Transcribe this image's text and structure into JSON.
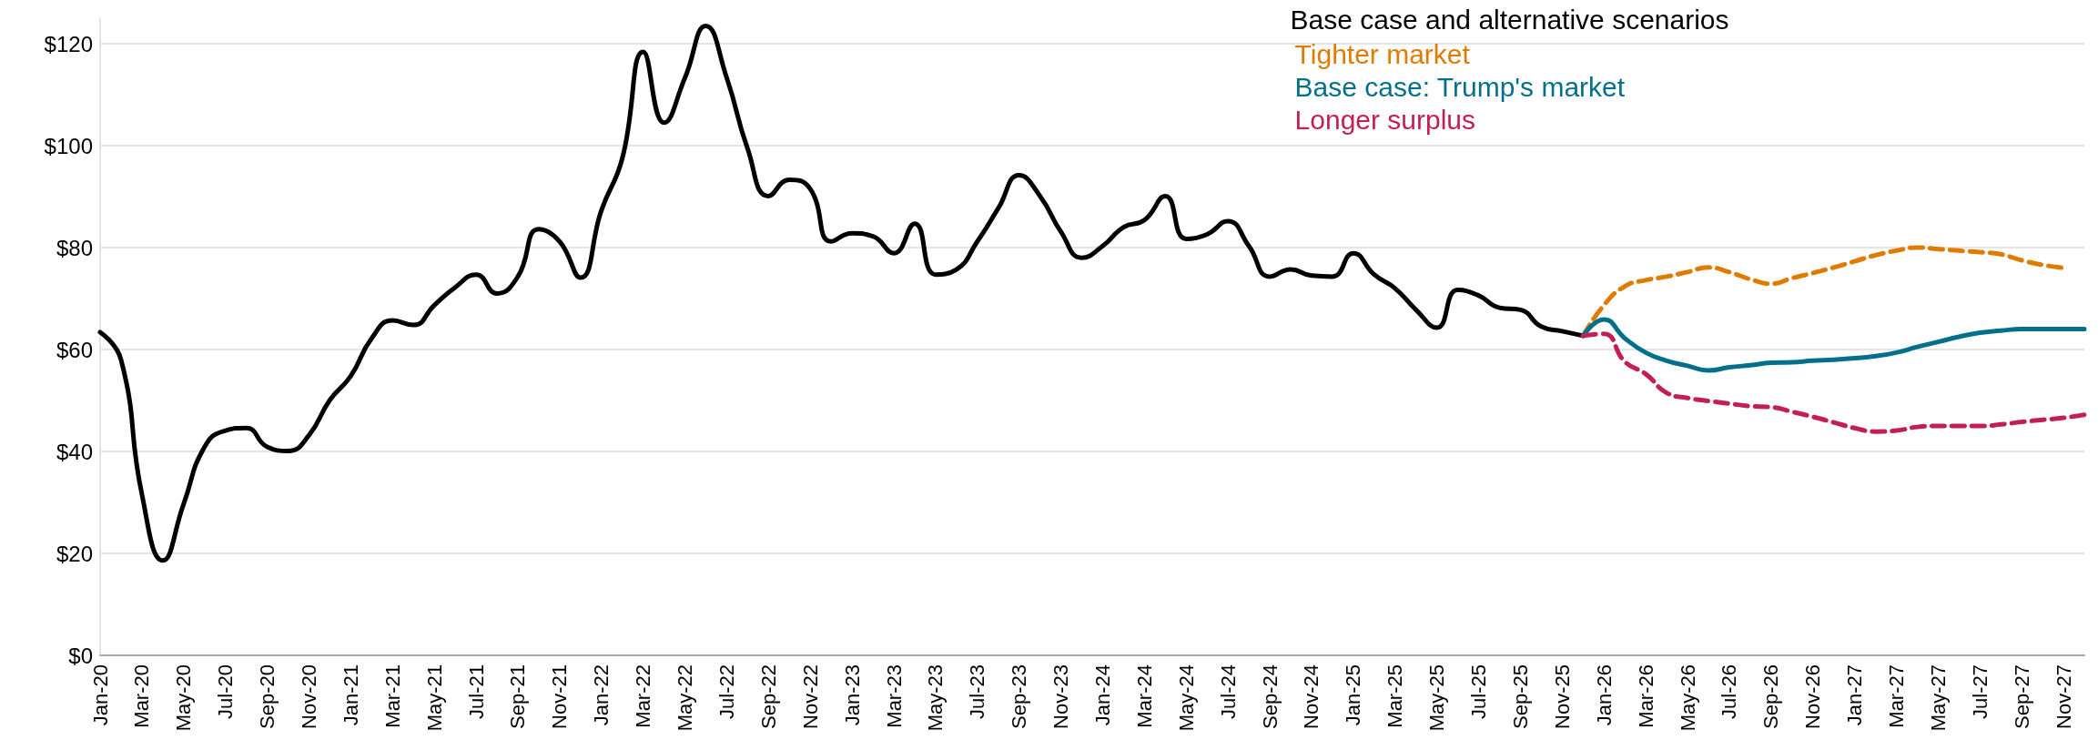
{
  "chart_data": {
    "type": "line",
    "legend_title": "Base case and alternative scenarios",
    "legend": "top right",
    "grid": "y",
    "marker": "none",
    "categories": [
      "Jan-20",
      null,
      "Mar-20",
      null,
      "May-20",
      null,
      "Jul-20",
      null,
      "Sep-20",
      null,
      "Nov-20",
      null,
      "Jan-21",
      null,
      "Mar-21",
      null,
      "May-21",
      null,
      "Jul-21",
      null,
      "Sep-21",
      null,
      "Nov-21",
      null,
      "Jan-22",
      null,
      "Mar-22",
      null,
      "May-22",
      null,
      "Jul-22",
      null,
      "Sep-22",
      null,
      "Nov-22",
      null,
      "Jan-23",
      null,
      "Mar-23",
      null,
      "May-23",
      null,
      "Jul-23",
      null,
      "Sep-23",
      null,
      "Nov-23",
      null,
      "Jan-24",
      null,
      "Mar-24",
      null,
      "May-24",
      null,
      "Jul-24",
      null,
      "Sep-24",
      null,
      "Nov-24",
      null,
      "Jan-25",
      null,
      "Mar-25",
      null,
      "May-25",
      null,
      "Jul-25",
      null,
      "Sep-25",
      null,
      "Nov-25",
      null,
      "Jan-26",
      null,
      "Mar-26",
      null,
      "May-26",
      null,
      "Jul-26",
      null,
      "Sep-26",
      null,
      "Nov-26",
      null,
      "Jan-27",
      null,
      "Mar-27",
      null,
      "May-27",
      null,
      "Jul-27",
      null,
      "Sep-27",
      null,
      "Nov-27",
      null
    ],
    "ylim": [
      0,
      125
    ],
    "yticks": [
      {
        "value": 0,
        "label": "$0"
      },
      {
        "value": 20,
        "label": "$20"
      },
      {
        "value": 40,
        "label": "$40"
      },
      {
        "value": 60,
        "label": "$60"
      },
      {
        "value": 80,
        "label": "$80"
      },
      {
        "value": 100,
        "label": "$100"
      },
      {
        "value": 120,
        "label": "$120"
      }
    ],
    "series": [
      {
        "color": "#000000",
        "line_style": "solid",
        "values": [
          63.4,
          58,
          31.6,
          18.6,
          29.7,
          40.9,
          44.1,
          44.6,
          40.9,
          40.1,
          43.2,
          50.1,
          54.8,
          62.2,
          65.7,
          64.8,
          68.7,
          72.2,
          74.7,
          71,
          74.3,
          83.6,
          81.2,
          74.1,
          87.3,
          97.5,
          118.4,
          104.5,
          113.3,
          123.5,
          113.3,
          99.4,
          90.1,
          93.3,
          91.5,
          81.2,
          82.8,
          82.2,
          78.9,
          84.7,
          74.7,
          75.7,
          81.2,
          87.7,
          94.2,
          90.1,
          83.1,
          78,
          80.3,
          84,
          85.4,
          90.1,
          81.7,
          82.6,
          85.2,
          80.3,
          74.3,
          75.7,
          74.5,
          74.3,
          78.9,
          74.7,
          72,
          67.8,
          64.3,
          71.7,
          70.6,
          68.2,
          67.8,
          64.5,
          63.6,
          62.7,
          null,
          null,
          null,
          null,
          null,
          null,
          null,
          null,
          null,
          null,
          null,
          null,
          null,
          null,
          null,
          null,
          null,
          null,
          null,
          null,
          null,
          null,
          null,
          null
        ]
      },
      {
        "name": "Tighter market",
        "color": "#e07b00",
        "line_style": "dashed",
        "values": [
          null,
          null,
          null,
          null,
          null,
          null,
          null,
          null,
          null,
          null,
          null,
          null,
          null,
          null,
          null,
          null,
          null,
          null,
          null,
          null,
          null,
          null,
          null,
          null,
          null,
          null,
          null,
          null,
          null,
          null,
          null,
          null,
          null,
          null,
          null,
          null,
          null,
          null,
          null,
          null,
          null,
          null,
          null,
          null,
          null,
          null,
          null,
          null,
          null,
          null,
          null,
          null,
          null,
          null,
          null,
          null,
          null,
          null,
          null,
          null,
          null,
          null,
          null,
          null,
          null,
          null,
          null,
          null,
          null,
          null,
          null,
          62.7,
          68.7,
          72.4,
          73.6,
          74.3,
          75.2,
          76.1,
          75.2,
          73.8,
          72.9,
          74,
          75,
          76.1,
          77.3,
          78.5,
          79.4,
          80,
          79.7,
          79.4,
          79.1,
          78.7,
          77.5,
          76.6,
          76,
          null
        ]
      },
      {
        "name": "Base case: Trump's market",
        "color": "#02708b",
        "line_style": "solid",
        "values": [
          null,
          null,
          null,
          null,
          null,
          null,
          null,
          null,
          null,
          null,
          null,
          null,
          null,
          null,
          null,
          null,
          null,
          null,
          null,
          null,
          null,
          null,
          null,
          null,
          null,
          null,
          null,
          null,
          null,
          null,
          null,
          null,
          null,
          null,
          null,
          null,
          null,
          null,
          null,
          null,
          null,
          null,
          null,
          null,
          null,
          null,
          null,
          null,
          null,
          null,
          null,
          null,
          null,
          null,
          null,
          null,
          null,
          null,
          null,
          null,
          null,
          null,
          null,
          null,
          null,
          null,
          null,
          null,
          null,
          null,
          null,
          62.7,
          65.9,
          62.2,
          59.4,
          57.8,
          56.8,
          55.9,
          56.5,
          56.9,
          57.4,
          57.5,
          57.8,
          58,
          58.3,
          58.7,
          59.4,
          60.5,
          61.5,
          62.5,
          63.3,
          63.7,
          64,
          64,
          64,
          64
        ]
      },
      {
        "name": "Longer surplus",
        "color": "#c41e56",
        "line_style": "dashed",
        "values": [
          null,
          null,
          null,
          null,
          null,
          null,
          null,
          null,
          null,
          null,
          null,
          null,
          null,
          null,
          null,
          null,
          null,
          null,
          null,
          null,
          null,
          null,
          null,
          null,
          null,
          null,
          null,
          null,
          null,
          null,
          null,
          null,
          null,
          null,
          null,
          null,
          null,
          null,
          null,
          null,
          null,
          null,
          null,
          null,
          null,
          null,
          null,
          null,
          null,
          null,
          null,
          null,
          null,
          null,
          null,
          null,
          null,
          null,
          null,
          null,
          null,
          null,
          null,
          null,
          null,
          null,
          null,
          null,
          null,
          null,
          null,
          62.7,
          63.1,
          57.6,
          55.2,
          51.5,
          50.5,
          49.9,
          49.4,
          48.9,
          48.7,
          47.8,
          46.8,
          45.7,
          44.6,
          43.9,
          44.1,
          44.8,
          45,
          45,
          45,
          45.3,
          45.8,
          46.2,
          46.6,
          47.2
        ]
      }
    ]
  }
}
